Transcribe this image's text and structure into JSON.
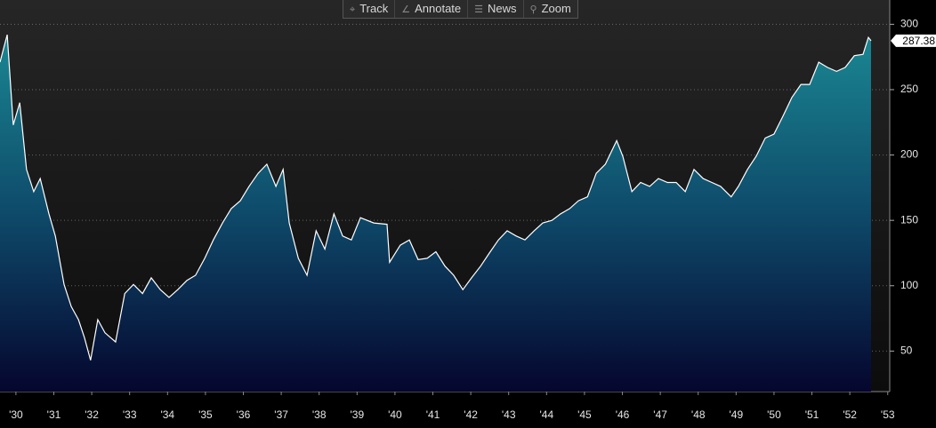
{
  "toolbar": {
    "buttons": [
      "Track",
      "Annotate",
      "News",
      "Zoom"
    ]
  },
  "chart_data": {
    "type": "area",
    "x": [
      1929.58,
      1929.77,
      1929.93,
      1930.1,
      1930.28,
      1930.47,
      1930.64,
      1930.87,
      1931.04,
      1931.27,
      1931.46,
      1931.65,
      1931.81,
      1931.97,
      1932.16,
      1932.35,
      1932.63,
      1932.87,
      1933.1,
      1933.34,
      1933.57,
      1933.81,
      1934.04,
      1934.27,
      1934.51,
      1934.74,
      1934.98,
      1935.21,
      1935.45,
      1935.68,
      1935.92,
      1936.15,
      1936.39,
      1936.62,
      1936.86,
      1937.05,
      1937.21,
      1937.45,
      1937.68,
      1937.92,
      1938.15,
      1938.39,
      1938.62,
      1938.85,
      1939.09,
      1939.44,
      1939.79,
      1939.86,
      1940.14,
      1940.38,
      1940.61,
      1940.85,
      1941.08,
      1941.32,
      1941.55,
      1941.79,
      1942.02,
      1942.26,
      1942.49,
      1942.73,
      1942.96,
      1943.2,
      1943.43,
      1943.67,
      1943.9,
      1944.14,
      1944.37,
      1944.61,
      1944.84,
      1945.08,
      1945.31,
      1945.55,
      1945.85,
      1946.01,
      1946.25,
      1946.48,
      1946.72,
      1946.95,
      1947.19,
      1947.42,
      1947.66,
      1947.89,
      1948.13,
      1948.36,
      1948.59,
      1948.87,
      1949.06,
      1949.3,
      1949.53,
      1949.77,
      1950.0,
      1950.24,
      1950.47,
      1950.71,
      1950.94,
      1951.18,
      1951.41,
      1951.65,
      1951.88,
      1952.12,
      1952.35,
      1952.49,
      1952.56
    ],
    "series": [
      {
        "color": "#ffffff",
        "values": [
          271,
          292,
          223,
          240,
          189,
          172,
          182,
          155,
          138,
          101,
          84,
          74,
          60,
          43,
          74,
          64,
          57,
          94,
          101,
          94,
          106,
          97,
          91,
          97,
          104,
          108,
          121,
          135,
          148,
          159,
          165,
          176,
          186,
          193,
          176,
          189,
          148,
          121,
          108,
          142,
          128,
          155,
          138,
          135,
          152,
          148,
          147,
          118,
          131,
          135,
          120,
          121,
          126,
          115,
          108,
          97,
          106,
          115,
          125,
          135,
          142,
          138,
          135,
          142,
          148,
          150,
          155,
          159,
          165,
          168,
          186,
          193,
          211,
          199,
          172,
          179,
          176,
          182,
          179,
          179,
          172,
          189,
          182,
          179,
          176,
          168,
          176,
          189,
          199,
          213,
          216,
          230,
          244,
          254,
          254,
          271,
          267,
          264,
          267,
          276,
          277,
          290,
          287.38
        ]
      }
    ],
    "xlim": [
      1929.58,
      1953.1
    ],
    "xticks": [
      {
        "value": 1930,
        "label": "'30"
      },
      {
        "value": 1931,
        "label": "'31"
      },
      {
        "value": 1932,
        "label": "'32"
      },
      {
        "value": 1933,
        "label": "'33"
      },
      {
        "value": 1934,
        "label": "'34"
      },
      {
        "value": 1935,
        "label": "'35"
      },
      {
        "value": 1936,
        "label": "'36"
      },
      {
        "value": 1937,
        "label": "'37"
      },
      {
        "value": 1938,
        "label": "'38"
      },
      {
        "value": 1939,
        "label": "'39"
      },
      {
        "value": 1940,
        "label": "'40"
      },
      {
        "value": 1941,
        "label": "'41"
      },
      {
        "value": 1942,
        "label": "'42"
      },
      {
        "value": 1943,
        "label": "'43"
      },
      {
        "value": 1944,
        "label": "'44"
      },
      {
        "value": 1945,
        "label": "'45"
      },
      {
        "value": 1946,
        "label": "'46"
      },
      {
        "value": 1947,
        "label": "'47"
      },
      {
        "value": 1948,
        "label": "'48"
      },
      {
        "value": 1949,
        "label": "'49"
      },
      {
        "value": 1950,
        "label": "'50"
      },
      {
        "value": 1951,
        "label": "'51"
      },
      {
        "value": 1952,
        "label": "'52"
      },
      {
        "value": 1953,
        "label": "'53"
      }
    ],
    "ylim": [
      19,
      305
    ],
    "yticks": [
      50,
      100,
      150,
      200,
      250,
      300
    ],
    "grid": true
  }
}
